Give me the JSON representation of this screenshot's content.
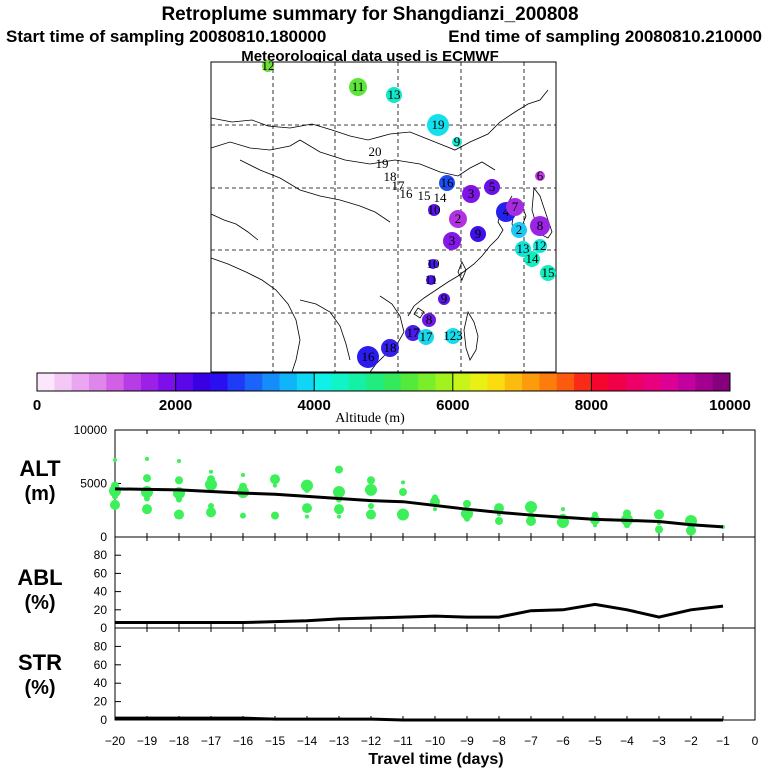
{
  "header": {
    "title": "Retroplume summary for Shangdianzi_200808",
    "start_label": "Start time of sampling 20080810.180000",
    "end_label": "End time of sampling 20080810.210000",
    "met_label": "Meteorological data used is ECMWF"
  },
  "colorbar": {
    "xlabel": "Altitude (m)",
    "ticks": [
      "0",
      "2000",
      "4000",
      "6000",
      "8000",
      "10000"
    ],
    "min": 0,
    "max": 10000,
    "colors": [
      "#fce6fc",
      "#f4c8f6",
      "#eaa6f0",
      "#df86ea",
      "#d160e6",
      "#b83ce6",
      "#9c20e8",
      "#7d10ea",
      "#5c06ea",
      "#3a00e4",
      "#2a10f0",
      "#1e3cf8",
      "#1a64fa",
      "#148cfa",
      "#10b4f8",
      "#0ed6f4",
      "#0ef0e8",
      "#10f4c8",
      "#14f0a4",
      "#20ec80",
      "#34ea5c",
      "#54ea3c",
      "#7aee28",
      "#a2f21e",
      "#c8f41a",
      "#e8f014",
      "#fadc10",
      "#fcbc0e",
      "#fc9c0c",
      "#fc7c0c",
      "#fc5a0e",
      "#fa2a18",
      "#f4062e",
      "#f00048",
      "#ec0066",
      "#e8007e",
      "#dc0094",
      "#c400a0",
      "#a40090",
      "#84007c"
    ]
  },
  "map": {
    "labels": [
      {
        "t": "12",
        "c": "#6edc3a",
        "sz": 10
      },
      {
        "t": "11",
        "c": "#5ce63c",
        "sz": 16
      },
      {
        "t": "13",
        "c": "#14e8c8",
        "sz": 14
      },
      {
        "t": "19",
        "c": "#14e0ec",
        "sz": 20
      },
      {
        "t": "9",
        "c": "#18e8cc",
        "sz": 8
      },
      {
        "t": "20",
        "c": "none",
        "sz": 0
      },
      {
        "t": "19",
        "c": "none",
        "sz": 0
      },
      {
        "t": "18",
        "c": "none",
        "sz": 0
      },
      {
        "t": "17",
        "c": "none",
        "sz": 0
      },
      {
        "t": "16",
        "c": "none",
        "sz": 0
      },
      {
        "t": "15",
        "c": "none",
        "sz": 0
      },
      {
        "t": "14",
        "c": "none",
        "sz": 0
      },
      {
        "t": "16",
        "c": "#1c4cf2",
        "sz": 14
      },
      {
        "t": "5",
        "c": "#6a12e6",
        "sz": 14
      },
      {
        "t": "6",
        "c": "#c03ce2",
        "sz": 8
      },
      {
        "t": "10",
        "c": "#5a10e8",
        "sz": 10
      },
      {
        "t": "3",
        "c": "#8014e4",
        "sz": 16
      },
      {
        "t": "2",
        "c": "#b232e2",
        "sz": 16
      },
      {
        "t": "4",
        "c": "#2420ee",
        "sz": 18
      },
      {
        "t": "7",
        "c": "#a62ce2",
        "sz": 16
      },
      {
        "t": "8",
        "c": "#9a24e6",
        "sz": 18
      },
      {
        "t": "3",
        "c": "#8418e6",
        "sz": 16
      },
      {
        "t": "9",
        "c": "#4010ea",
        "sz": 14
      },
      {
        "t": "2",
        "c": "#1ec8f4",
        "sz": 14
      },
      {
        "t": "13",
        "c": "#12e2dc",
        "sz": 14
      },
      {
        "t": "14",
        "c": "#12eec0",
        "sz": 14
      },
      {
        "t": "12",
        "c": "#14e6d8",
        "sz": 12
      },
      {
        "t": "15",
        "c": "#14eebe",
        "sz": 14
      },
      {
        "t": "10",
        "c": "#4418ea",
        "sz": 8
      },
      {
        "t": "11",
        "c": "#4a14e8",
        "sz": 8
      },
      {
        "t": "9",
        "c": "#5a18e6",
        "sz": 10
      },
      {
        "t": "8",
        "c": "#6e1ae4",
        "sz": 12
      },
      {
        "t": "17",
        "c": "#4a1ce8",
        "sz": 14
      },
      {
        "t": "17",
        "c": "#1ad8ec",
        "sz": 14
      },
      {
        "t": "123",
        "c": "#16dcec",
        "sz": 14
      },
      {
        "t": "18",
        "c": "#3420ea",
        "sz": 16
      },
      {
        "t": "16",
        "c": "#2a1cec",
        "sz": 20
      }
    ]
  },
  "panels": {
    "alt": {
      "label1": "ALT",
      "label2": "(m)",
      "yticks": [
        "10000",
        "5000",
        "0"
      ]
    },
    "abl": {
      "label1": "ABL",
      "label2": "(%)",
      "yticks": [
        "80",
        "60",
        "40",
        "20",
        "0"
      ]
    },
    "str": {
      "label1": "STR",
      "label2": "(%)",
      "yticks": [
        "80",
        "60",
        "40",
        "20",
        "0"
      ]
    }
  },
  "chart_data": [
    {
      "type": "line",
      "title": "ALT (m)",
      "ylabel": "ALT (m)",
      "ylim": [
        0,
        10000
      ],
      "x": [
        -20,
        -19,
        -18,
        -17,
        -16,
        -15,
        -14,
        -13,
        -12,
        -11,
        -10,
        -9,
        -8,
        -7,
        -6,
        -5,
        -4,
        -3,
        -2,
        -1
      ],
      "series": [
        {
          "name": "median altitude",
          "values": [
            4500,
            4450,
            4400,
            4250,
            4100,
            4000,
            3800,
            3600,
            3400,
            3300,
            2950,
            2600,
            2300,
            2050,
            1850,
            1650,
            1550,
            1450,
            1150,
            950
          ]
        }
      ],
      "scatter_points": [
        [
          -20,
          7200
        ],
        [
          -20,
          4800
        ],
        [
          -20,
          4300
        ],
        [
          -20,
          3800
        ],
        [
          -20,
          3000
        ],
        [
          -19,
          7300
        ],
        [
          -19,
          5500
        ],
        [
          -19,
          4200
        ],
        [
          -19,
          3600
        ],
        [
          -19,
          2600
        ],
        [
          -18,
          7100
        ],
        [
          -18,
          5300
        ],
        [
          -18,
          4100
        ],
        [
          -18,
          3500
        ],
        [
          -18,
          2100
        ],
        [
          -17,
          6100
        ],
        [
          -17,
          5400
        ],
        [
          -17,
          4900
        ],
        [
          -17,
          2900
        ],
        [
          -17,
          2300
        ],
        [
          -16,
          5800
        ],
        [
          -16,
          4700
        ],
        [
          -16,
          4200
        ],
        [
          -16,
          2000
        ],
        [
          -15,
          5400
        ],
        [
          -15,
          4800
        ],
        [
          -15,
          2000
        ],
        [
          -14,
          4800
        ],
        [
          -14,
          4400
        ],
        [
          -14,
          2700
        ],
        [
          -14,
          1900
        ],
        [
          -13,
          6300
        ],
        [
          -13,
          4200
        ],
        [
          -13,
          3500
        ],
        [
          -13,
          2600
        ],
        [
          -13,
          1900
        ],
        [
          -12,
          5300
        ],
        [
          -12,
          4400
        ],
        [
          -12,
          2900
        ],
        [
          -12,
          2100
        ],
        [
          -11,
          5100
        ],
        [
          -11,
          4200
        ],
        [
          -11,
          2100
        ],
        [
          -10,
          3700
        ],
        [
          -10,
          3300
        ],
        [
          -10,
          2600
        ],
        [
          -9,
          3100
        ],
        [
          -9,
          2200
        ],
        [
          -9,
          1700
        ],
        [
          -8,
          2700
        ],
        [
          -8,
          2100
        ],
        [
          -8,
          1500
        ],
        [
          -7,
          2800
        ],
        [
          -7,
          2000
        ],
        [
          -7,
          1500
        ],
        [
          -6,
          2600
        ],
        [
          -6,
          1800
        ],
        [
          -6,
          1400
        ],
        [
          -5,
          2100
        ],
        [
          -5,
          1600
        ],
        [
          -5,
          1100
        ],
        [
          -4,
          2200
        ],
        [
          -4,
          1600
        ],
        [
          -4,
          1100
        ],
        [
          -3,
          2100
        ],
        [
          -3,
          1300
        ],
        [
          -3,
          700
        ],
        [
          -2,
          1500
        ],
        [
          -2,
          900
        ],
        [
          -2,
          600
        ],
        [
          -1,
          950
        ]
      ],
      "scatter_color": "#3cf05a"
    },
    {
      "type": "line",
      "title": "ABL (%)",
      "ylabel": "ABL (%)",
      "ylim": [
        0,
        100
      ],
      "x": [
        -20,
        -19,
        -18,
        -17,
        -16,
        -15,
        -14,
        -13,
        -12,
        -11,
        -10,
        -9,
        -8,
        -7,
        -6,
        -5,
        -4,
        -3,
        -2,
        -1
      ],
      "series": [
        {
          "name": "ABL fraction",
          "values": [
            6,
            6,
            6,
            6,
            6,
            7,
            8,
            10,
            11,
            12,
            13,
            12,
            12,
            19,
            20,
            26,
            20,
            12,
            20,
            24
          ]
        }
      ]
    },
    {
      "type": "line",
      "title": "STR (%)",
      "ylabel": "STR (%)",
      "xlabel": "Travel time (days)",
      "ylim": [
        0,
        100
      ],
      "x": [
        -20,
        -19,
        -18,
        -17,
        -16,
        -15,
        -14,
        -13,
        -12,
        -11,
        -10,
        -9,
        -8,
        -7,
        -6,
        -5,
        -4,
        -3,
        -2,
        -1
      ],
      "xticks": [
        "−20",
        "−19",
        "−18",
        "−17",
        "−16",
        "−15",
        "−14",
        "−13",
        "−12",
        "−11",
        "−10",
        "−9",
        "−8",
        "−7",
        "−6",
        "−5",
        "−4",
        "−3",
        "−2",
        "−1",
        "0"
      ],
      "series": [
        {
          "name": "stratosphere fraction",
          "values": [
            2,
            2,
            2,
            2,
            2,
            1,
            1,
            1,
            1,
            0,
            0,
            0,
            0,
            0,
            0,
            0,
            0,
            0,
            0,
            0
          ]
        }
      ]
    }
  ]
}
